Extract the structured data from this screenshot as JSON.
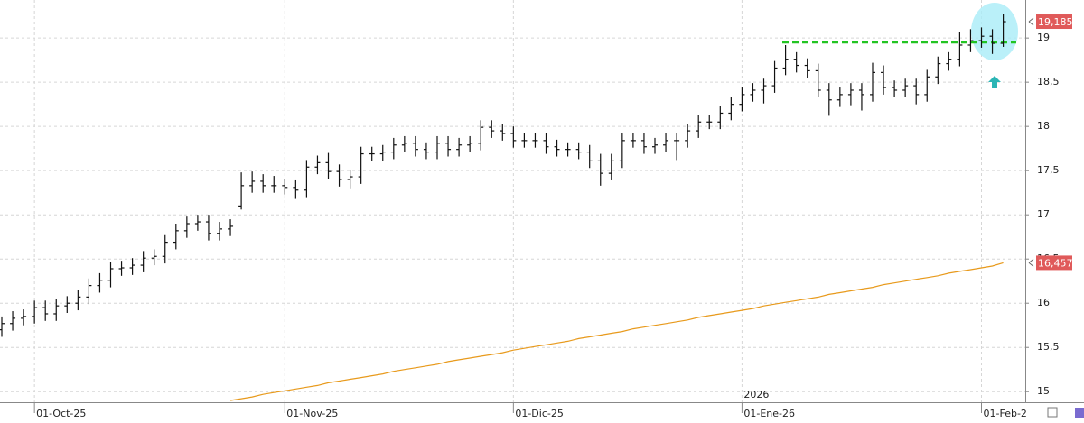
{
  "chart_data": {
    "type": "ohlc",
    "categories": [
      null,
      null,
      null,
      "01-Oct-25",
      null,
      null,
      null,
      null,
      null,
      null,
      null,
      null,
      null,
      null,
      null,
      null,
      null,
      null,
      null,
      null,
      null,
      null,
      null,
      null,
      null,
      null,
      "01-Nov-25",
      null,
      null,
      null,
      null,
      null,
      null,
      null,
      null,
      null,
      null,
      null,
      null,
      null,
      null,
      null,
      null,
      null,
      null,
      null,
      null,
      "01-Dic-25",
      null,
      null,
      null,
      null,
      null,
      null,
      null,
      null,
      null,
      null,
      null,
      null,
      null,
      null,
      null,
      null,
      null,
      null,
      null,
      null,
      "01-Ene-26",
      null,
      null,
      null,
      null,
      null,
      null,
      null,
      null,
      null,
      null,
      null,
      null,
      null,
      null,
      null,
      null,
      null,
      null,
      null,
      null,
      null,
      "01-Feb-2",
      null,
      null
    ],
    "year_label": "2026",
    "ylim": [
      14.88,
      19.43
    ],
    "yticks": [
      15,
      {
        "value": 15.5,
        "label": "15,5"
      },
      16,
      {
        "value": 16.5,
        "label": "16,5"
      },
      17,
      {
        "value": 17.5,
        "label": "17,5"
      },
      18,
      {
        "value": 18.5,
        "label": "18,5"
      },
      19
    ],
    "grid": true,
    "ohlc": {
      "color": "#111111",
      "open": [
        15.7,
        15.77,
        15.83,
        15.85,
        15.95,
        15.88,
        15.97,
        16.0,
        16.07,
        16.2,
        16.26,
        16.39,
        16.4,
        16.43,
        16.51,
        16.53,
        16.69,
        16.82,
        16.9,
        16.92,
        16.79,
        16.84,
        17.1,
        17.33,
        17.38,
        17.33,
        17.33,
        17.31,
        17.28,
        17.54,
        17.59,
        17.49,
        17.4,
        17.43,
        17.69,
        17.69,
        17.71,
        17.79,
        17.81,
        17.74,
        17.71,
        17.81,
        17.74,
        17.79,
        17.81,
        17.99,
        17.95,
        17.92,
        17.84,
        17.84,
        17.84,
        17.77,
        17.74,
        17.74,
        17.71,
        17.61,
        17.47,
        17.61,
        17.84,
        17.84,
        17.77,
        17.79,
        17.84,
        17.84,
        17.95,
        18.05,
        18.05,
        18.15,
        18.25,
        18.36,
        18.41,
        18.46,
        18.66,
        18.76,
        18.69,
        18.63,
        18.41,
        18.3,
        18.36,
        18.41,
        18.36,
        18.61,
        18.44,
        18.41,
        18.46,
        18.36,
        18.56,
        18.71,
        18.76,
        18.92,
        18.97,
        19.02,
        18.94
      ],
      "high": [
        15.85,
        15.91,
        15.93,
        16.03,
        16.03,
        16.05,
        16.08,
        16.15,
        16.28,
        16.34,
        16.47,
        16.48,
        16.51,
        16.59,
        16.61,
        16.77,
        16.9,
        16.98,
        17.0,
        17.0,
        16.92,
        16.95,
        17.48,
        17.49,
        17.46,
        17.44,
        17.41,
        17.39,
        17.62,
        17.67,
        17.7,
        17.57,
        17.51,
        17.77,
        17.77,
        17.79,
        17.87,
        17.89,
        17.89,
        17.82,
        17.89,
        17.89,
        17.87,
        17.89,
        18.07,
        18.07,
        18.03,
        18.0,
        17.92,
        17.92,
        17.92,
        17.85,
        17.82,
        17.82,
        17.79,
        17.69,
        17.69,
        17.92,
        17.92,
        17.92,
        17.87,
        17.92,
        17.92,
        18.03,
        18.13,
        18.13,
        18.23,
        18.33,
        18.44,
        18.49,
        18.54,
        18.74,
        18.92,
        18.84,
        18.77,
        18.71,
        18.49,
        18.44,
        18.49,
        18.49,
        18.72,
        18.69,
        18.52,
        18.54,
        18.54,
        18.64,
        18.79,
        18.84,
        19.07,
        19.1,
        19.12,
        19.1,
        19.27
      ],
      "low": [
        15.62,
        15.69,
        15.75,
        15.77,
        15.8,
        15.8,
        15.89,
        15.92,
        15.99,
        16.12,
        16.18,
        16.31,
        16.32,
        16.35,
        16.43,
        16.45,
        16.61,
        16.74,
        16.82,
        16.71,
        16.71,
        16.76,
        17.06,
        17.25,
        17.25,
        17.25,
        17.23,
        17.18,
        17.2,
        17.46,
        17.41,
        17.32,
        17.3,
        17.35,
        17.61,
        17.61,
        17.63,
        17.71,
        17.66,
        17.63,
        17.63,
        17.66,
        17.66,
        17.71,
        17.73,
        17.87,
        17.84,
        17.76,
        17.76,
        17.76,
        17.69,
        17.66,
        17.66,
        17.63,
        17.53,
        17.33,
        17.39,
        17.53,
        17.76,
        17.69,
        17.69,
        17.71,
        17.62,
        17.76,
        17.87,
        17.97,
        17.97,
        18.07,
        18.17,
        18.28,
        18.26,
        18.38,
        18.58,
        18.61,
        18.55,
        18.33,
        18.12,
        18.22,
        18.24,
        18.18,
        18.28,
        18.36,
        18.33,
        18.33,
        18.25,
        18.28,
        18.48,
        18.63,
        18.68,
        18.84,
        18.89,
        18.82,
        18.9
      ],
      "close": [
        15.77,
        15.83,
        15.85,
        15.95,
        15.88,
        15.97,
        16.0,
        16.07,
        16.2,
        16.26,
        16.39,
        16.4,
        16.43,
        16.51,
        16.53,
        16.69,
        16.82,
        16.9,
        16.92,
        16.79,
        16.84,
        16.87,
        17.33,
        17.38,
        17.33,
        17.33,
        17.31,
        17.28,
        17.54,
        17.59,
        17.49,
        17.4,
        17.43,
        17.69,
        17.69,
        17.71,
        17.79,
        17.81,
        17.74,
        17.71,
        17.81,
        17.74,
        17.79,
        17.81,
        17.99,
        17.95,
        17.92,
        17.84,
        17.84,
        17.84,
        17.77,
        17.74,
        17.74,
        17.71,
        17.61,
        17.47,
        17.61,
        17.84,
        17.84,
        17.77,
        17.79,
        17.84,
        17.84,
        17.95,
        18.05,
        18.05,
        18.15,
        18.25,
        18.36,
        18.41,
        18.46,
        18.66,
        18.76,
        18.69,
        18.63,
        18.41,
        18.3,
        18.36,
        18.41,
        18.36,
        18.61,
        18.44,
        18.41,
        18.46,
        18.36,
        18.56,
        18.71,
        18.76,
        18.92,
        18.97,
        19.02,
        18.94,
        19.185
      ]
    },
    "moving_average": {
      "color": "#e89a1c",
      "values": [
        null,
        null,
        null,
        null,
        null,
        null,
        null,
        null,
        null,
        null,
        null,
        null,
        null,
        null,
        null,
        null,
        null,
        null,
        null,
        null,
        null,
        14.9,
        14.92,
        14.94,
        14.97,
        14.99,
        15.01,
        15.03,
        15.05,
        15.07,
        15.1,
        15.12,
        15.14,
        15.16,
        15.18,
        15.2,
        15.23,
        15.25,
        15.27,
        15.29,
        15.31,
        15.34,
        15.36,
        15.38,
        15.4,
        15.42,
        15.44,
        15.47,
        15.49,
        15.51,
        15.53,
        15.55,
        15.57,
        15.6,
        15.62,
        15.64,
        15.66,
        15.68,
        15.71,
        15.73,
        15.75,
        15.77,
        15.79,
        15.81,
        15.84,
        15.86,
        15.88,
        15.9,
        15.92,
        15.94,
        15.97,
        15.99,
        16.01,
        16.03,
        16.05,
        16.07,
        16.1,
        16.12,
        16.14,
        16.16,
        16.18,
        16.21,
        16.23,
        16.25,
        16.27,
        16.29,
        16.31,
        16.34,
        16.36,
        16.38,
        16.4,
        16.42,
        16.457
      ]
    },
    "resistance": {
      "value": 18.95,
      "color": "#22c422"
    },
    "price_labels": [
      {
        "value": 19.185,
        "label": "19,185",
        "color": "#e05a5a"
      },
      {
        "value": 16.457,
        "label": "16,457",
        "color": "#e05a5a"
      }
    ]
  }
}
